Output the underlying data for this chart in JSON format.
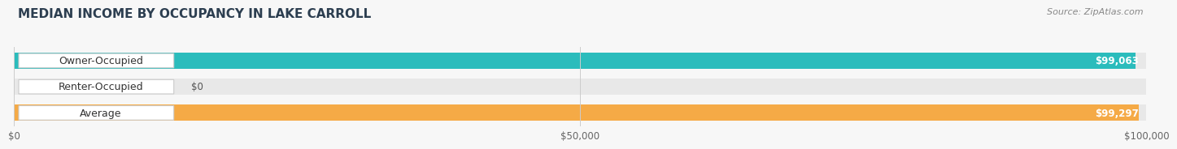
{
  "title": "MEDIAN INCOME BY OCCUPANCY IN LAKE CARROLL",
  "source": "Source: ZipAtlas.com",
  "categories": [
    "Owner-Occupied",
    "Renter-Occupied",
    "Average"
  ],
  "values": [
    99063,
    0,
    99297
  ],
  "bar_colors": [
    "#2bbcbc",
    "#c8acd8",
    "#f5aa46"
  ],
  "bar_value_labels": [
    "$99,063",
    "$0",
    "$99,297"
  ],
  "xlim": [
    0,
    100000
  ],
  "xticks": [
    0,
    50000,
    100000
  ],
  "xtick_labels": [
    "$0",
    "$50,000",
    "$100,000"
  ],
  "background_color": "#f7f7f7",
  "bar_background_color": "#e8e8e8",
  "title_fontsize": 11,
  "source_fontsize": 8,
  "label_fontsize": 9,
  "value_fontsize": 8.5
}
